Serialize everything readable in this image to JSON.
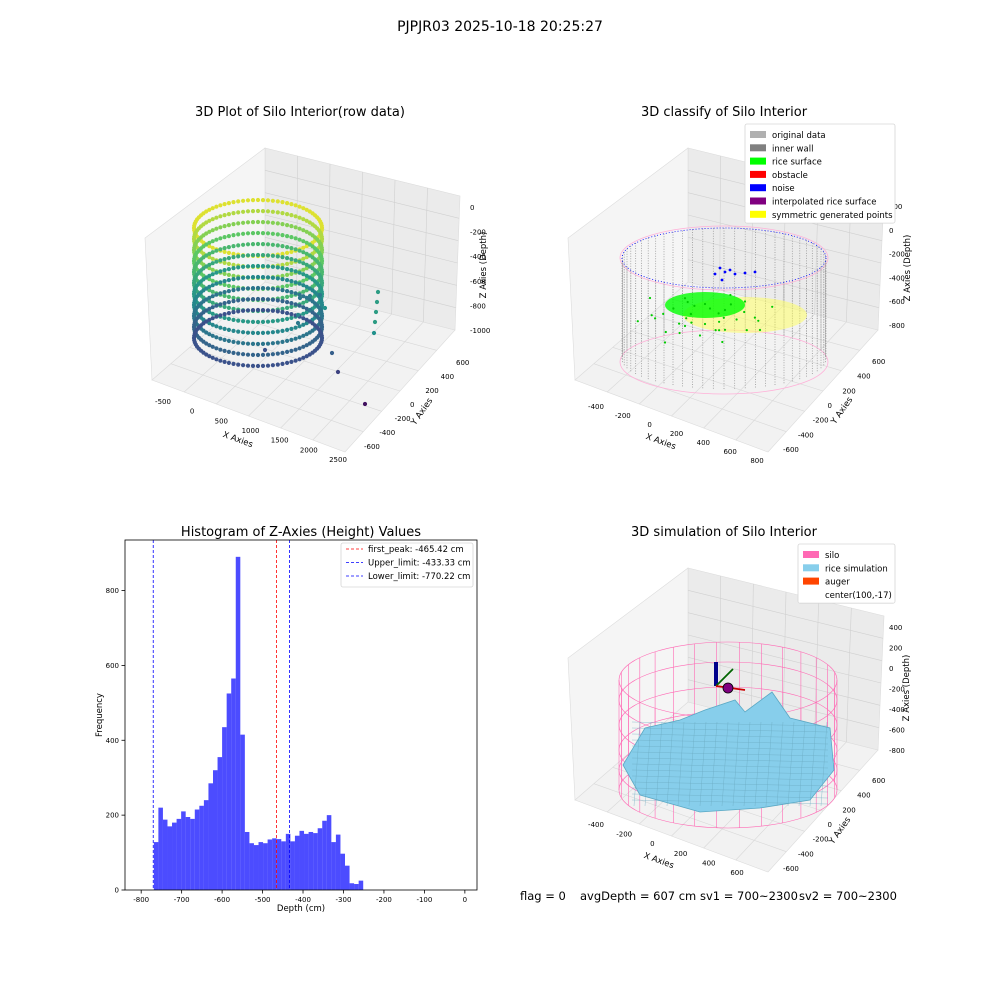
{
  "figure": {
    "suptitle": "PJPJR03 2025-10-18 20:25:27",
    "status_line": {
      "flag": "flag = 0",
      "avg_depth": "avgDepth = 607 cm",
      "sv1": "sv1 = 700~2300",
      "sv2": "sv2 = 700~2300"
    }
  },
  "chart_data": [
    {
      "id": "raw",
      "type": "scatter",
      "projection": "3d",
      "title": "3D Plot of Silo Interior(row data)",
      "xlabel": "X Axies",
      "ylabel": "Y Axies",
      "zlabel": "Z Axies (Depth)",
      "xticks": [
        "-500",
        "0",
        "500",
        "1000",
        "1500",
        "2000",
        "2500"
      ],
      "yticks": [
        "600",
        "400",
        "200",
        "0",
        "-200",
        "-400",
        "-600"
      ],
      "zticks": [
        "0",
        "-200",
        "-400",
        "-600",
        "-800",
        "-1000"
      ],
      "colormap": "viridis",
      "grid": true
    },
    {
      "id": "classify",
      "type": "scatter",
      "projection": "3d",
      "title": "3D classify of Silo Interior",
      "xlabel": "X Axies",
      "ylabel": "Y Axies",
      "zlabel": "Z Axies (Depth)",
      "xticks": [
        "-400",
        "-200",
        "0",
        "200",
        "400",
        "600",
        "800"
      ],
      "yticks": [
        "600",
        "400",
        "200",
        "0",
        "-200",
        "-400",
        "-600"
      ],
      "zticks": [
        "200",
        "0",
        "-200",
        "-400",
        "-600",
        "-800"
      ],
      "legend_position": "top-right",
      "legend": [
        {
          "label": "original data",
          "color": "#b0b0b0"
        },
        {
          "label": "inner wall",
          "color": "#808080"
        },
        {
          "label": "rice surface",
          "color": "#00ff00"
        },
        {
          "label": "obstacle",
          "color": "#ff0000"
        },
        {
          "label": "noise",
          "color": "#0000ff"
        },
        {
          "label": "interpolated rice surface",
          "color": "#800080"
        },
        {
          "label": "symmetric generated points",
          "color": "#ffff00"
        }
      ],
      "grid": true
    },
    {
      "id": "hist",
      "type": "bar",
      "title": "Histogram of Z-Axies (Height) Values",
      "xlabel": "Depth (cm)",
      "ylabel": "Frequency",
      "xlim": [
        -840,
        30
      ],
      "ylim": [
        0,
        935
      ],
      "xticks": [
        -800,
        -700,
        -600,
        -500,
        -400,
        -300,
        -200,
        -100,
        0
      ],
      "yticks": [
        0,
        200,
        400,
        600,
        800
      ],
      "bin_start": -780,
      "bin_width": 11.25,
      "color": "#0000ff",
      "values": [
        0,
        128,
        220,
        188,
        170,
        180,
        190,
        210,
        195,
        190,
        215,
        225,
        240,
        285,
        320,
        355,
        435,
        525,
        565,
        890,
        415,
        155,
        125,
        120,
        128,
        125,
        135,
        138,
        136,
        130,
        150,
        130,
        145,
        158,
        150,
        155,
        152,
        165,
        185,
        200,
        128,
        148,
        97,
        65,
        18,
        16,
        25
      ],
      "vlines": [
        {
          "label": "first_peak: -465.42 cm",
          "x": -465.42,
          "color": "#ff0000"
        },
        {
          "label": "Upper_limit: -433.33 cm",
          "x": -433.33,
          "color": "#0000ff"
        },
        {
          "label": "Lower_limit: -770.22 cm",
          "x": -770.22,
          "color": "#0000ff"
        }
      ],
      "legend_position": "top-right",
      "grid": false
    },
    {
      "id": "simulation",
      "type": "surface",
      "projection": "3d",
      "title": "3D simulation of Silo Interior",
      "xlabel": "X Axies",
      "ylabel": "Y Axies",
      "zlabel": "Z Axies (Depth)",
      "xticks": [
        "-400",
        "-200",
        "0",
        "200",
        "400",
        "600"
      ],
      "yticks": [
        "600",
        "400",
        "200",
        "0",
        "-200",
        "-400",
        "-600"
      ],
      "zticks": [
        "400",
        "200",
        "0",
        "-200",
        "-400",
        "-600",
        "-800"
      ],
      "legend_position": "top-right",
      "legend": [
        {
          "label": "silo",
          "color": "#ff69b4"
        },
        {
          "label": "rice simulation",
          "color": "#87ceeb"
        },
        {
          "label": "auger",
          "color": "#ff4500"
        },
        {
          "label": "center(100,-17)",
          "color": ""
        }
      ],
      "grid": true
    }
  ]
}
